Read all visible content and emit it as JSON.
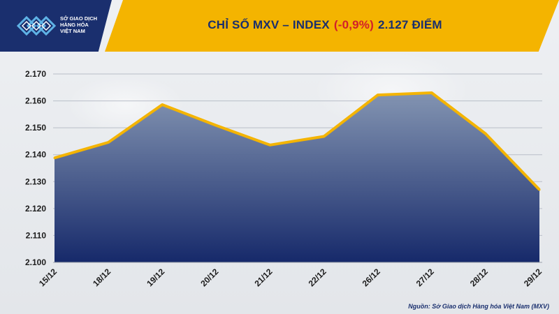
{
  "logo": {
    "text": "SỞ GIAO DỊCH\nHÀNG HÓA\nVIỆT NAM",
    "color": "#1a2f6e"
  },
  "header": {
    "title_main": "CHỈ SỐ MXV – INDEX",
    "title_change": "(-0,9%)",
    "title_value": "2.127 ĐIỂM",
    "accent_color": "#f4b400",
    "change_color": "#d21f2b"
  },
  "chart_data": {
    "type": "area",
    "title": "CHỈ SỐ MXV – INDEX (-0,9%) 2.127 ĐIỂM",
    "categories": [
      "15/12",
      "18/12",
      "19/12",
      "20/12",
      "21/12",
      "22/12",
      "26/12",
      "27/12",
      "28/12",
      "29/12"
    ],
    "values": [
      2138.8,
      2144.6,
      2158.6,
      2150.9,
      2143.6,
      2146.8,
      2162.2,
      2163.0,
      2147.8,
      2127.0
    ],
    "ylim": [
      2100,
      2170
    ],
    "yticks": [
      "2.100",
      "2.110",
      "2.120",
      "2.130",
      "2.140",
      "2.150",
      "2.160",
      "2.170"
    ],
    "ytick_values": [
      2100,
      2110,
      2120,
      2130,
      2140,
      2150,
      2160,
      2170
    ],
    "grid": true,
    "line_color": "#f4b400",
    "fill_top_color": "#7d8fae",
    "fill_bottom_color": "#16296a"
  },
  "footer": {
    "source": "Nguồn: Sở Giao dịch Hàng hóa Việt Nam (MXV)"
  }
}
